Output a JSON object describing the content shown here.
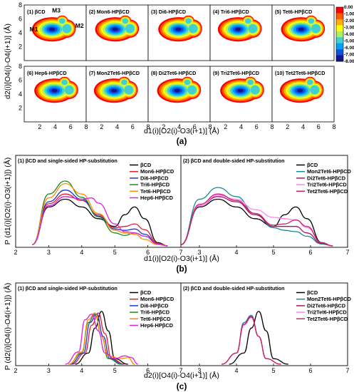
{
  "figure": {
    "caption_a": "(a)",
    "caption_b": "(b)",
    "caption_c": "(c)"
  },
  "colors": {
    "betaCD": "#000000",
    "Mon6": "#e0202a",
    "Di6": "#2030d8",
    "Tri6": "#1f8a1f",
    "Tet6": "#ff8c00",
    "Hep6": "#e020e0",
    "Mon2Tet6": "#108c9c",
    "Di2Tet6": "#b0106a",
    "Tri2Tet6": "#ff80ff",
    "Tet2Tet6": "#cc2060"
  },
  "chart_data": [
    {
      "type": "heatmap",
      "panel": "a",
      "xlabel": "d1(i)[O2(i)-O3(i+1)] (Å)",
      "ylabel": "d2(i)[O4(i)-O4(i+1)] (Å)",
      "xlim": [
        0,
        8
      ],
      "ylim": [
        0,
        8
      ],
      "x_ticks": [
        "2",
        "4",
        "6",
        "8"
      ],
      "y_ticks": [
        "2",
        "4",
        "6",
        "8"
      ],
      "subplots": [
        {
          "label": "(1) βCD",
          "m1": "M1",
          "m2": "M2",
          "m3": "M3"
        },
        {
          "label": "(2) Mon6-HPβCD"
        },
        {
          "label": "(3) Di6-HPβCD"
        },
        {
          "label": "(4) Tri6-HPβCD"
        },
        {
          "label": "(5) Tet6-HPβCD"
        },
        {
          "label": "(6) Hep6-HPβCD"
        },
        {
          "label": "(7) Mon2Tet6-HPβCD"
        },
        {
          "label": "(8) Di2Tet6-HPβCD"
        },
        {
          "label": "(9) Tri2Tet6-HPβCD"
        },
        {
          "label": "(10) Tet2Tet6-HPβCD"
        }
      ],
      "colorbar": {
        "labels": [
          "0.00",
          "-1.00",
          "-2.00",
          "-3.00",
          "-4.00",
          "-5.00",
          "-6.00",
          "-7.00",
          "-8.00"
        ],
        "colors": [
          "#ff0000",
          "#ff5a00",
          "#ffb000",
          "#ffff00",
          "#b0f060",
          "#40d0d0",
          "#00a0ff",
          "#1050e0",
          "#101890"
        ]
      }
    },
    {
      "type": "line",
      "panel": "b",
      "xlabel": "d1(i)[O2(i)-O3(i+1)] (Å)",
      "ylabel": "P (d1(i)[O2(i)-O3(i+1)]) (Å)",
      "xlim": [
        2,
        7
      ],
      "x_ticks": [
        "2",
        "3",
        "4",
        "5",
        "6",
        "7"
      ],
      "x_ticks_right": [
        "3",
        "4",
        "5",
        "6",
        "7"
      ],
      "subplots": [
        {
          "title": "(1) βCD and single-sided HP-substitution",
          "series": [
            {
              "name": "βCD",
              "key": "betaCD",
              "x": [
                2.5,
                3.0,
                3.5,
                4.0,
                4.5,
                5.0,
                5.3,
                5.6,
                5.9,
                6.3,
                6.6
              ],
              "y": [
                0.02,
                0.6,
                0.72,
                0.6,
                0.42,
                0.3,
                0.48,
                0.6,
                0.42,
                0.05,
                0.0
              ]
            },
            {
              "name": "Mon6-HPβCD",
              "key": "Mon6",
              "x": [
                2.5,
                3.0,
                3.5,
                4.0,
                4.5,
                5.0,
                5.3,
                5.6,
                5.9,
                6.3,
                6.6
              ],
              "y": [
                0.02,
                0.65,
                0.8,
                0.7,
                0.48,
                0.28,
                0.3,
                0.34,
                0.25,
                0.04,
                0.0
              ]
            },
            {
              "name": "Di6-HPβCD",
              "key": "Di6",
              "x": [
                2.5,
                3.0,
                3.5,
                4.0,
                4.5,
                5.0,
                5.3,
                5.6,
                5.9,
                6.3,
                6.6
              ],
              "y": [
                0.02,
                0.68,
                0.86,
                0.72,
                0.46,
                0.26,
                0.24,
                0.26,
                0.18,
                0.03,
                0.0
              ]
            },
            {
              "name": "Tri6-HPβCD",
              "key": "Tri6",
              "x": [
                2.5,
                3.0,
                3.5,
                4.0,
                4.5,
                5.0,
                5.3,
                5.6,
                5.9,
                6.3,
                6.6
              ],
              "y": [
                0.02,
                0.8,
                1.0,
                0.75,
                0.45,
                0.2,
                0.16,
                0.2,
                0.15,
                0.03,
                0.0
              ]
            },
            {
              "name": "Tet6-HPβCD",
              "key": "Tet6",
              "x": [
                2.5,
                3.0,
                3.5,
                4.0,
                4.5,
                5.0,
                5.3,
                5.6,
                5.9,
                6.3,
                6.6
              ],
              "y": [
                0.02,
                0.74,
                0.96,
                0.8,
                0.5,
                0.24,
                0.2,
                0.18,
                0.1,
                0.02,
                0.0
              ]
            },
            {
              "name": "Hep6-HPβCD",
              "key": "Hep6",
              "x": [
                2.5,
                3.0,
                3.5,
                4.0,
                4.3,
                4.5,
                5.0,
                5.3,
                5.6,
                5.9,
                6.3,
                6.6
              ],
              "y": [
                0.02,
                0.62,
                0.76,
                0.72,
                0.74,
                0.66,
                0.34,
                0.22,
                0.2,
                0.15,
                0.03,
                0.0
              ]
            }
          ]
        },
        {
          "title": "(2) βCD and double-sided HP-substitution",
          "series": [
            {
              "name": "βCD",
              "key": "betaCD",
              "x": [
                2.5,
                3.0,
                3.5,
                4.0,
                4.5,
                5.0,
                5.3,
                5.6,
                5.9,
                6.3,
                6.6
              ],
              "y": [
                0.02,
                0.6,
                0.72,
                0.6,
                0.42,
                0.3,
                0.48,
                0.6,
                0.42,
                0.05,
                0.0
              ]
            },
            {
              "name": "Mon2Tet6-HPβCD",
              "key": "Mon2Tet6",
              "x": [
                2.5,
                3.0,
                3.5,
                4.0,
                4.5,
                5.0,
                5.3,
                5.6,
                5.9,
                6.3,
                6.6
              ],
              "y": [
                0.02,
                0.72,
                0.9,
                0.76,
                0.5,
                0.28,
                0.24,
                0.22,
                0.15,
                0.03,
                0.0
              ]
            },
            {
              "name": "Di2Tet6-HPβCD",
              "key": "Di2Tet6",
              "x": [
                2.5,
                3.0,
                3.5,
                4.0,
                4.5,
                5.0,
                5.3,
                5.6,
                5.9,
                6.3,
                6.6
              ],
              "y": [
                0.02,
                0.62,
                0.76,
                0.68,
                0.48,
                0.3,
                0.3,
                0.3,
                0.2,
                0.04,
                0.0
              ]
            },
            {
              "name": "Tri2Tet6-HPβCD",
              "key": "Tri2Tet6",
              "x": [
                2.5,
                3.0,
                3.5,
                4.0,
                4.5,
                5.0,
                5.3,
                5.6,
                5.9,
                6.3,
                6.6
              ],
              "y": [
                0.02,
                0.62,
                0.78,
                0.72,
                0.56,
                0.44,
                0.42,
                0.4,
                0.28,
                0.05,
                0.0
              ]
            },
            {
              "name": "Tet2Tet6-HPβCD",
              "key": "Tet2Tet6",
              "x": [
                2.5,
                3.0,
                3.5,
                4.0,
                4.5,
                5.0,
                5.3,
                5.6,
                5.9,
                6.3,
                6.6
              ],
              "y": [
                0.02,
                0.64,
                0.8,
                0.7,
                0.5,
                0.32,
                0.34,
                0.4,
                0.3,
                0.05,
                0.0
              ]
            }
          ]
        }
      ]
    },
    {
      "type": "line",
      "panel": "c",
      "xlabel": "d2(i)[O4(i)-O4(i+1)] (Å)",
      "ylabel": "P (d2(i)[O4(i)-O4(i+1)]) (Å)",
      "xlim": [
        2,
        7
      ],
      "x_ticks": [
        "2",
        "3",
        "4",
        "5",
        "6",
        "7"
      ],
      "x_ticks_right": [
        "3",
        "4",
        "5",
        "6",
        "7"
      ],
      "subplots": [
        {
          "title": "(1) βCD and single-sided HP-substitution",
          "series": [
            {
              "name": "βCD",
              "key": "betaCD",
              "x": [
                3.8,
                4.2,
                4.4,
                4.6,
                4.8,
                5.0,
                5.4
              ],
              "y": [
                0.0,
                0.2,
                0.65,
                0.95,
                0.6,
                0.1,
                0.0
              ]
            },
            {
              "name": "Mon6-HPβCD",
              "key": "Mon6",
              "x": [
                3.7,
                4.1,
                4.3,
                4.5,
                4.7,
                4.9,
                5.3
              ],
              "y": [
                0.0,
                0.2,
                0.7,
                0.92,
                0.55,
                0.1,
                0.0
              ]
            },
            {
              "name": "Di6-HPβCD",
              "key": "Di6",
              "x": [
                3.65,
                4.05,
                4.25,
                4.45,
                4.65,
                4.85,
                5.25
              ],
              "y": [
                0.0,
                0.2,
                0.75,
                0.9,
                0.5,
                0.1,
                0.0
              ]
            },
            {
              "name": "Tri6-HPβCD",
              "key": "Tri6",
              "x": [
                3.6,
                4.0,
                4.2,
                4.4,
                4.6,
                4.8,
                5.2
              ],
              "y": [
                0.0,
                0.2,
                0.75,
                0.9,
                0.5,
                0.1,
                0.0
              ]
            },
            {
              "name": "Tet6-HPβCD",
              "key": "Tet6",
              "x": [
                3.6,
                4.0,
                4.2,
                4.4,
                4.6,
                4.8,
                5.2,
                5.4,
                5.6
              ],
              "y": [
                0.0,
                0.22,
                0.8,
                0.92,
                0.5,
                0.15,
                0.1,
                0.12,
                0.0
              ]
            },
            {
              "name": "Hep6-HPβCD",
              "key": "Hep6",
              "x": [
                3.5,
                3.9,
                4.1,
                4.3,
                4.5,
                4.7,
                5.0,
                5.3,
                5.5,
                5.7
              ],
              "y": [
                0.0,
                0.22,
                0.8,
                0.9,
                0.6,
                0.2,
                0.1,
                0.15,
                0.12,
                0.0
              ]
            }
          ]
        },
        {
          "title": "(2) βCD and double-sided HP-substitution",
          "series": [
            {
              "name": "βCD",
              "key": "betaCD",
              "x": [
                3.8,
                4.2,
                4.4,
                4.6,
                4.8,
                5.0,
                5.4
              ],
              "y": [
                0.0,
                0.2,
                0.65,
                0.95,
                0.6,
                0.1,
                0.0
              ]
            },
            {
              "name": "Mon2Tet6-HPβCD",
              "key": "Mon2Tet6",
              "x": [
                3.6,
                4.0,
                4.2,
                4.4,
                4.6,
                4.8,
                5.2
              ],
              "y": [
                0.0,
                0.2,
                0.75,
                0.88,
                0.5,
                0.1,
                0.0
              ]
            },
            {
              "name": "Di2Tet6-HPβCD",
              "key": "Di2Tet6",
              "x": [
                3.6,
                4.0,
                4.2,
                4.4,
                4.6,
                4.8,
                5.2
              ],
              "y": [
                0.0,
                0.2,
                0.72,
                0.86,
                0.5,
                0.1,
                0.0
              ]
            },
            {
              "name": "Tri2Tet6-HPβCD",
              "key": "Tri2Tet6",
              "x": [
                3.6,
                4.0,
                4.2,
                4.4,
                4.6,
                4.8,
                5.2
              ],
              "y": [
                0.0,
                0.2,
                0.7,
                0.84,
                0.5,
                0.1,
                0.0
              ]
            },
            {
              "name": "Tet2Tet6-HPβCD",
              "key": "Tet2Tet6",
              "x": [
                3.6,
                4.0,
                4.2,
                4.4,
                4.6,
                4.8,
                5.2
              ],
              "y": [
                0.0,
                0.2,
                0.72,
                0.85,
                0.5,
                0.1,
                0.0
              ]
            }
          ]
        }
      ]
    }
  ]
}
